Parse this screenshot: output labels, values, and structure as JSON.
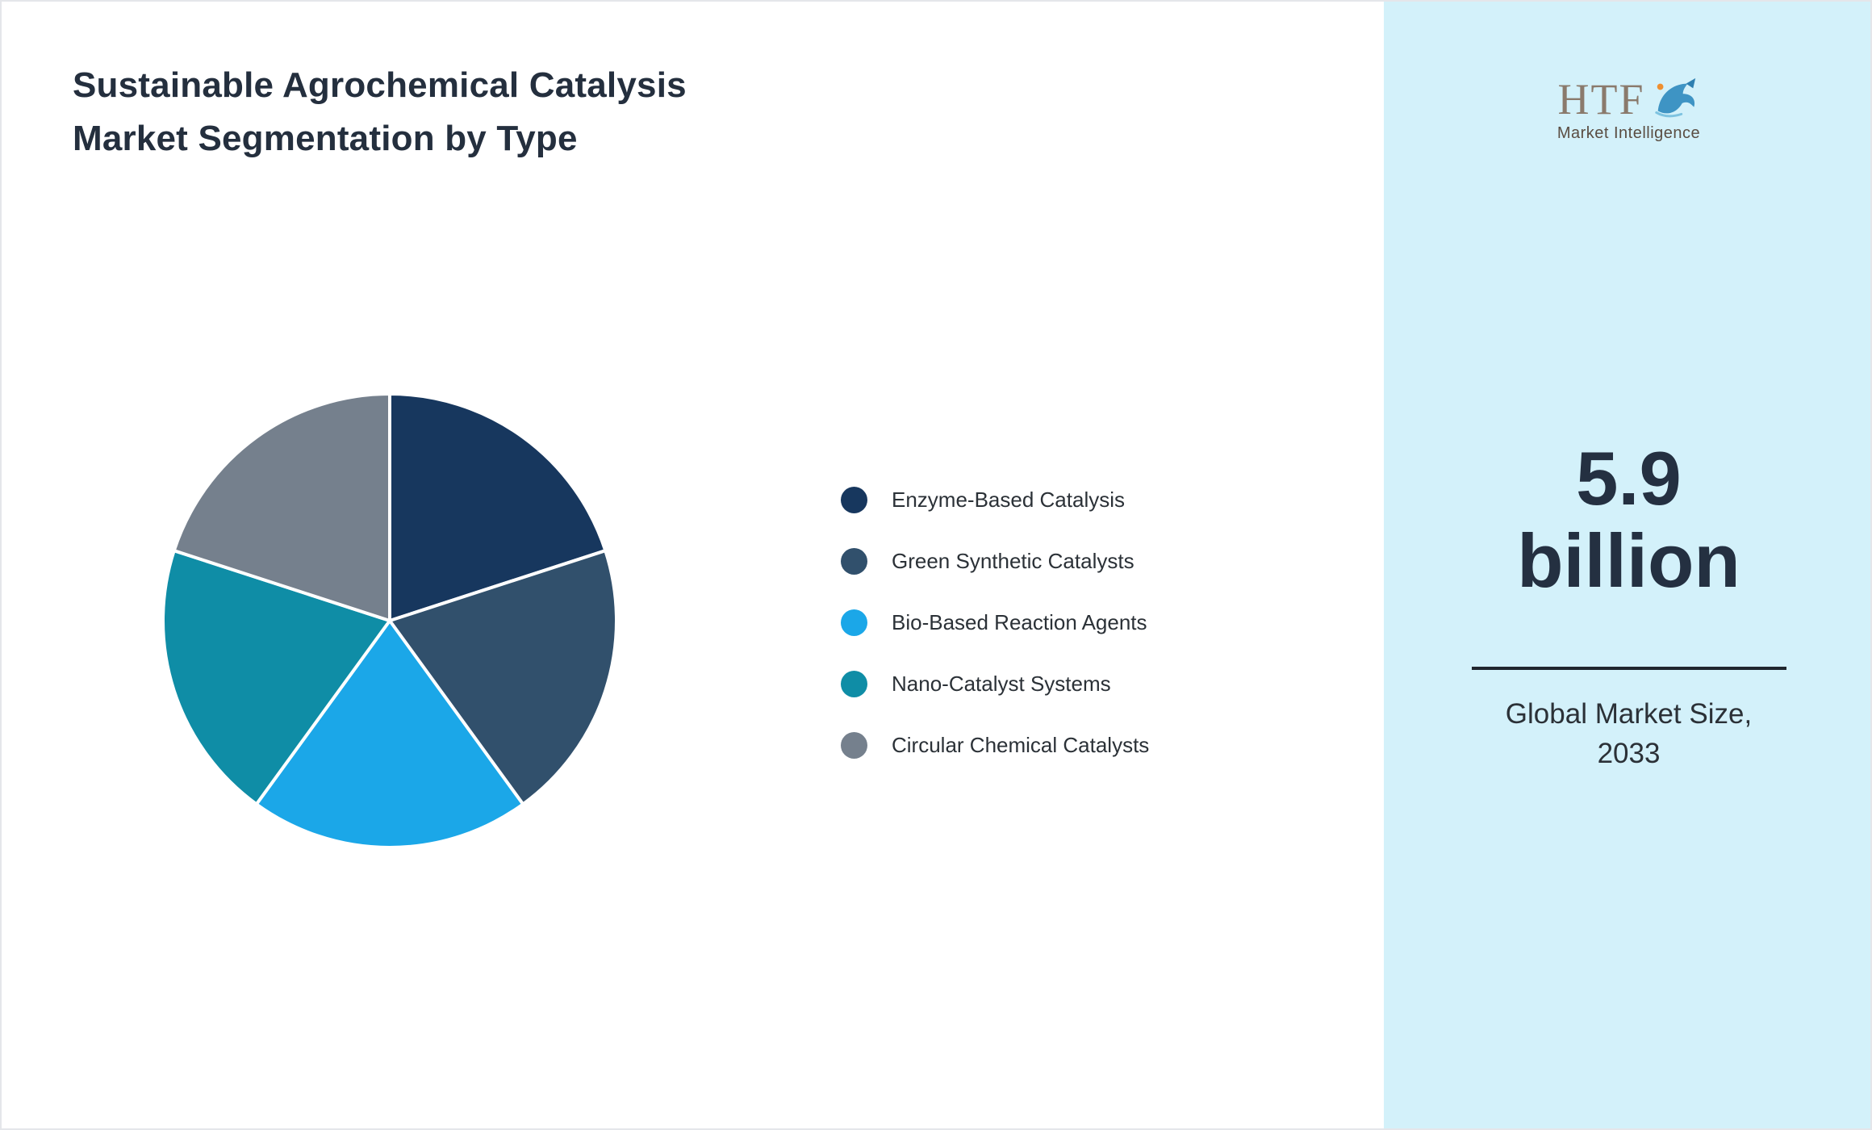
{
  "page": {
    "title": "Sustainable Agrochemical Catalysis Market Segmentation by Type"
  },
  "logo": {
    "brand": "HTF",
    "tagline": "Market Intelligence"
  },
  "sidebar": {
    "background": "#d3f1fa",
    "metric_value_line1": "5.9",
    "metric_value_line2": "billion",
    "metric_caption_line1": "Global Market Size,",
    "metric_caption_line2": "2033"
  },
  "chart_data": {
    "type": "pie",
    "title": "Sustainable Agrochemical Catalysis Market Segmentation by Type",
    "labels": [
      "Enzyme-Based Catalysis",
      "Green Synthetic Catalysts",
      "Bio-Based Reaction Agents",
      "Nano-Catalyst Systems",
      "Circular Chemical Catalysts"
    ],
    "values": [
      20,
      20,
      20,
      20,
      20
    ],
    "colors": [
      "#17375e",
      "#31506c",
      "#1ba7e8",
      "#0f8da6",
      "#75808d"
    ],
    "start_angle_deg": -90,
    "direction": "clockwise",
    "legend_position": "right",
    "data_labels": false
  }
}
